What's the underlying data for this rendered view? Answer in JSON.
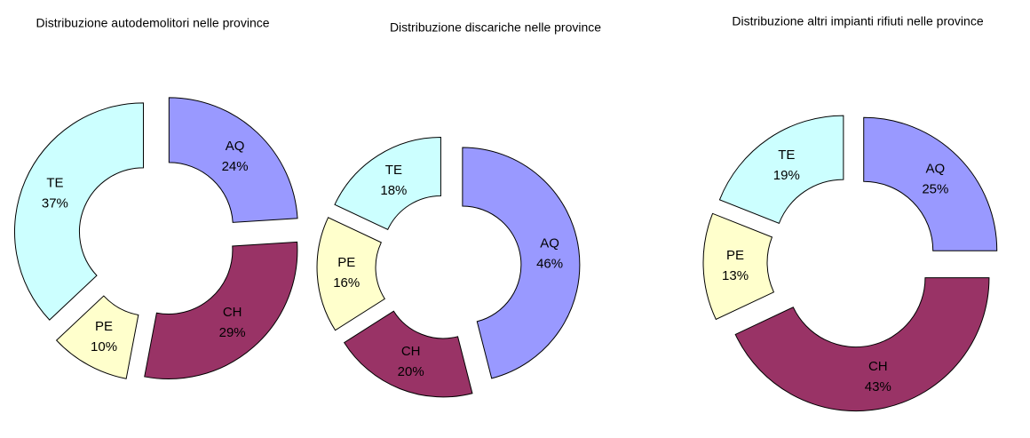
{
  "chart_data": [
    {
      "type": "pie",
      "title": "Distribuzione autodemolitori nelle province",
      "categories": [
        "AQ",
        "CH",
        "PE",
        "TE"
      ],
      "values": [
        24,
        29,
        10,
        37
      ],
      "value_labels": [
        "24%",
        "29%",
        "10%",
        "37%"
      ],
      "colors": [
        "#9999ff",
        "#993366",
        "#ffffcc",
        "#ccffff"
      ]
    },
    {
      "type": "pie",
      "title": "Distribuzione discariche nelle province",
      "categories": [
        "AQ",
        "CH",
        "PE",
        "TE"
      ],
      "values": [
        46,
        20,
        16,
        18
      ],
      "value_labels": [
        "46%",
        "20%",
        "16%",
        "18%"
      ],
      "colors": [
        "#9999ff",
        "#993366",
        "#ffffcc",
        "#ccffff"
      ]
    },
    {
      "type": "pie",
      "title": "Distribuzione altri impianti rifiuti nelle province",
      "categories": [
        "AQ",
        "CH",
        "PE",
        "TE"
      ],
      "values": [
        25,
        43,
        13,
        19
      ],
      "value_labels": [
        "25%",
        "43%",
        "13%",
        "19%"
      ],
      "colors": [
        "#9999ff",
        "#993366",
        "#ffffcc",
        "#ccffff"
      ]
    }
  ]
}
